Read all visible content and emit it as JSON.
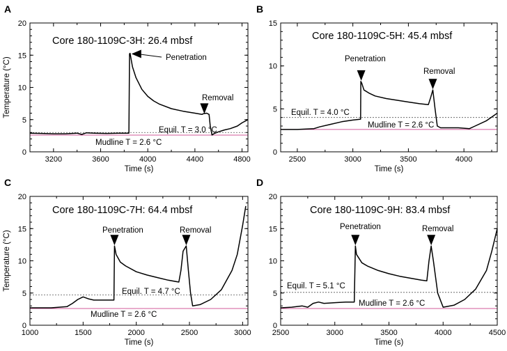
{
  "chart_data": [
    {
      "type": "line",
      "panel": "A",
      "title": "Core 180-1109C-3H: 26.4 mbsf",
      "xlabel": "Time (s)",
      "ylabel": "Temperature (°C)",
      "xlim": [
        3000,
        4850
      ],
      "ylim": [
        0,
        20
      ],
      "xticks": [
        3200,
        3600,
        4000,
        4400,
        4800
      ],
      "yticks": [
        0,
        5,
        10,
        15,
        20
      ],
      "mudline": {
        "y": 2.6,
        "label": "Mudline T = 2.6 °C"
      },
      "equil": {
        "y": 3.0,
        "label": "Equil. T = 3.0 °C"
      },
      "penetration": {
        "label": "Penetration",
        "x": 3850,
        "y": 15.2
      },
      "removal": {
        "label": "Removal",
        "x": 4480,
        "y": 5.8
      },
      "series": [
        {
          "x": [
            3000,
            3100,
            3200,
            3300,
            3400,
            3440,
            3480,
            3550,
            3650,
            3750,
            3840,
            3845,
            3850,
            3870,
            3900,
            3950,
            4000,
            4050,
            4100,
            4200,
            4300,
            4400,
            4460,
            4470,
            4500,
            4520,
            4530,
            4545,
            4560,
            4600,
            4650,
            4700,
            4760,
            4800,
            4850
          ],
          "y": [
            2.9,
            2.85,
            2.8,
            2.8,
            2.9,
            2.7,
            2.95,
            2.9,
            2.85,
            2.9,
            2.9,
            15.2,
            15.3,
            13.2,
            11.5,
            9.7,
            8.6,
            7.9,
            7.4,
            6.7,
            6.3,
            6.0,
            5.8,
            5.9,
            6.0,
            5.8,
            4.0,
            2.6,
            2.8,
            3.1,
            3.4,
            3.6,
            4.0,
            4.5,
            5.0
          ]
        }
      ]
    },
    {
      "type": "line",
      "panel": "B",
      "title": "Core 180-1109C-5H: 45.4 mbsf",
      "xlabel": "Time (s)",
      "ylabel": "",
      "xlim": [
        2350,
        4300
      ],
      "ylim": [
        0,
        15
      ],
      "xticks": [
        2500,
        3000,
        3500,
        4000
      ],
      "yticks": [
        0,
        5,
        10,
        15
      ],
      "mudline": {
        "y": 2.6,
        "label": "Mudline T = 2.6 °C"
      },
      "equil": {
        "y": 4.0,
        "label": "Equil. T = 4.0 °C"
      },
      "penetration": {
        "label": "Penetration",
        "x": 3075,
        "y": 8.2
      },
      "removal": {
        "label": "Removal",
        "x": 3720,
        "y": 7.2
      },
      "series": [
        {
          "x": [
            2350,
            2500,
            2650,
            2700,
            2800,
            2900,
            3000,
            3070,
            3072,
            3080,
            3100,
            3150,
            3200,
            3300,
            3400,
            3500,
            3600,
            3680,
            3700,
            3720,
            3740,
            3760,
            3790,
            3850,
            3950,
            4050,
            4100,
            4200,
            4300
          ],
          "y": [
            2.6,
            2.6,
            2.7,
            2.9,
            3.2,
            3.5,
            3.7,
            3.8,
            8.2,
            8.0,
            7.2,
            6.8,
            6.5,
            6.2,
            6.0,
            5.8,
            5.6,
            5.5,
            6.3,
            7.2,
            5.0,
            3.0,
            2.8,
            2.8,
            2.8,
            2.7,
            3.0,
            3.6,
            4.5
          ]
        }
      ]
    },
    {
      "type": "line",
      "panel": "C",
      "title": "Core 180-1109C-7H: 64.4 mbsf",
      "xlabel": "Time (s)",
      "ylabel": "Temperature (°C)",
      "xlim": [
        1000,
        3050
      ],
      "ylim": [
        0,
        20
      ],
      "xticks": [
        1000,
        1500,
        2000,
        2500,
        3000
      ],
      "yticks": [
        0,
        5,
        10,
        15,
        20
      ],
      "mudline": {
        "y": 2.6,
        "label": "Mudline T = 2.6 °C"
      },
      "equil": {
        "y": 4.7,
        "label": "Equil. T = 4.7 °C"
      },
      "penetration": {
        "label": "Penetration",
        "x": 1795,
        "y": 12.3
      },
      "removal": {
        "label": "Removal",
        "x": 2470,
        "y": 12.3
      },
      "series": [
        {
          "x": [
            1000,
            1200,
            1350,
            1400,
            1450,
            1500,
            1550,
            1600,
            1700,
            1790,
            1795,
            1810,
            1850,
            1900,
            2000,
            2100,
            2200,
            2300,
            2400,
            2420,
            2440,
            2470,
            2490,
            2510,
            2530,
            2600,
            2700,
            2800,
            2900,
            2950,
            3000,
            3030
          ],
          "y": [
            2.7,
            2.7,
            2.9,
            3.4,
            4.0,
            4.4,
            4.1,
            3.9,
            3.9,
            3.9,
            12.3,
            11.0,
            9.8,
            9.2,
            8.3,
            7.8,
            7.4,
            7.0,
            6.7,
            8.5,
            11.5,
            12.3,
            8.5,
            5.0,
            3.0,
            3.2,
            4.0,
            5.5,
            8.5,
            11.0,
            15.5,
            18.5
          ]
        }
      ]
    },
    {
      "type": "line",
      "panel": "D",
      "title": "Core 180-1109C-9H: 83.4 mbsf",
      "xlabel": "Time (s)",
      "ylabel": "",
      "xlim": [
        2500,
        4500
      ],
      "ylim": [
        0,
        20
      ],
      "xticks": [
        2500,
        3000,
        3500,
        4000,
        4500
      ],
      "yticks": [
        0,
        5,
        10,
        15,
        20
      ],
      "mudline": {
        "y": 2.6,
        "label": "Mudline T = 2.6 °C"
      },
      "equil": {
        "y": 5.1,
        "label": "Equil. T = 5.1 °C"
      },
      "penetration": {
        "label": "Penetration",
        "x": 3190,
        "y": 12.3
      },
      "removal": {
        "label": "Removal",
        "x": 3890,
        "y": 12.3
      },
      "series": [
        {
          "x": [
            2500,
            2600,
            2700,
            2750,
            2800,
            2850,
            2900,
            3000,
            3100,
            3180,
            3190,
            3200,
            3250,
            3300,
            3400,
            3500,
            3600,
            3700,
            3800,
            3850,
            3870,
            3890,
            3910,
            3950,
            4000,
            4100,
            4200,
            4300,
            4400,
            4450,
            4500
          ],
          "y": [
            2.7,
            2.8,
            3.0,
            2.8,
            3.4,
            3.6,
            3.4,
            3.5,
            3.6,
            3.6,
            12.3,
            11.0,
            9.7,
            9.2,
            8.5,
            8.0,
            7.6,
            7.3,
            7.0,
            6.9,
            10.0,
            12.3,
            10.0,
            5.0,
            2.8,
            3.1,
            4.0,
            5.6,
            8.5,
            11.5,
            15.0
          ]
        }
      ]
    }
  ]
}
